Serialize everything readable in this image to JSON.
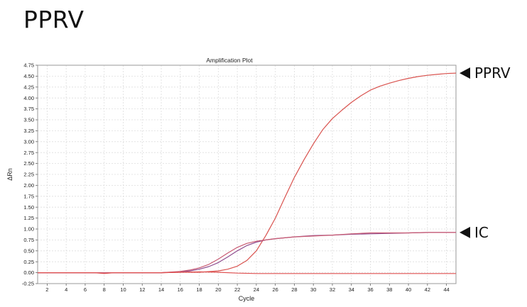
{
  "page": {
    "heading": "PPRV"
  },
  "chart_data": {
    "type": "line",
    "title": "Amplification Plot",
    "xlabel": "Cycle",
    "ylabel": "ΔRn",
    "xlim": [
      1,
      45
    ],
    "ylim": [
      -0.25,
      4.75
    ],
    "x_ticks": [
      2,
      4,
      6,
      8,
      10,
      12,
      14,
      16,
      18,
      20,
      22,
      24,
      26,
      28,
      30,
      32,
      34,
      36,
      38,
      40,
      42,
      44
    ],
    "y_ticks": [
      "-0.25",
      "0.00",
      "0.25",
      "0.50",
      "0.75",
      "1.00",
      "1.25",
      "1.50",
      "1.75",
      "2.00",
      "2.25",
      "2.50",
      "2.75",
      "3.00",
      "3.25",
      "3.50",
      "3.75",
      "4.00",
      "4.25",
      "4.50",
      "4.75"
    ],
    "grid": true,
    "series": [
      {
        "color": "#d9534f",
        "x": [
          1,
          14,
          16,
          18,
          20,
          21,
          22,
          23,
          24,
          25,
          26,
          27,
          28,
          29,
          30,
          31,
          32,
          33,
          34,
          35,
          36,
          37,
          38,
          39,
          40,
          41,
          42,
          43,
          44,
          45
        ],
        "y": [
          0.0,
          0.0,
          0.01,
          0.01,
          0.04,
          0.08,
          0.15,
          0.28,
          0.5,
          0.85,
          1.25,
          1.72,
          2.18,
          2.58,
          2.95,
          3.28,
          3.53,
          3.72,
          3.9,
          4.05,
          4.18,
          4.27,
          4.34,
          4.4,
          4.45,
          4.49,
          4.52,
          4.54,
          4.56,
          4.57
        ]
      },
      {
        "color": "#8e4c8e",
        "x": [
          1,
          14,
          16,
          17,
          18,
          19,
          20,
          21,
          22,
          23,
          24,
          25,
          26,
          28,
          30,
          32,
          34,
          36,
          38,
          40,
          42,
          44,
          45
        ],
        "y": [
          0.0,
          0.0,
          0.02,
          0.04,
          0.08,
          0.14,
          0.23,
          0.36,
          0.5,
          0.62,
          0.7,
          0.75,
          0.78,
          0.82,
          0.85,
          0.86,
          0.88,
          0.89,
          0.9,
          0.91,
          0.92,
          0.92,
          0.92
        ]
      },
      {
        "color": "#c85a72",
        "x": [
          1,
          14,
          16,
          17,
          18,
          19,
          20,
          21,
          22,
          23,
          24,
          25,
          26,
          28,
          30,
          32,
          34,
          36,
          38,
          40,
          42,
          44,
          45
        ],
        "y": [
          0.0,
          0.0,
          0.03,
          0.06,
          0.11,
          0.19,
          0.31,
          0.45,
          0.58,
          0.67,
          0.72,
          0.75,
          0.78,
          0.82,
          0.84,
          0.86,
          0.89,
          0.91,
          0.91,
          0.91,
          0.92,
          0.92,
          0.92
        ]
      },
      {
        "color": "#e05050",
        "x": [
          1,
          7,
          8,
          9,
          14,
          16,
          18,
          20,
          22,
          24,
          25,
          26,
          30,
          35,
          40,
          45
        ],
        "y": [
          0.0,
          0.0,
          -0.02,
          0.0,
          0.0,
          0.01,
          0.02,
          0.01,
          -0.01,
          -0.02,
          -0.02,
          -0.02,
          -0.02,
          -0.02,
          -0.02,
          -0.02
        ]
      }
    ],
    "annotations": [
      {
        "label": "PPRV",
        "y": 4.57
      },
      {
        "label": "IC",
        "y": 0.92
      }
    ]
  }
}
